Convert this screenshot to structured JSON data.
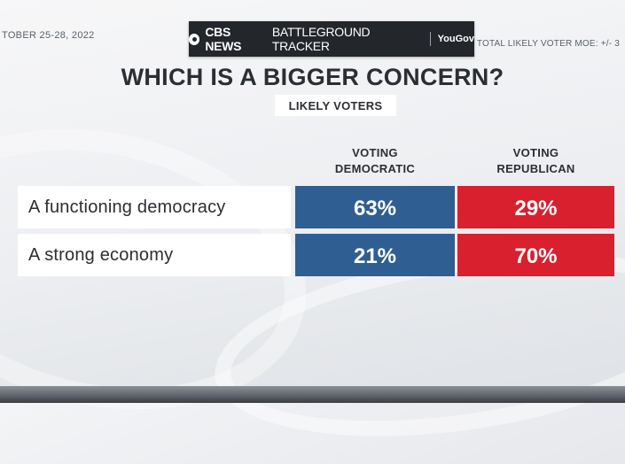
{
  "header": {
    "date": "TOBER 25-28, 2022",
    "brand_name": "CBS NEWS",
    "brand_tracker": "BATTLEGROUND TRACKER",
    "brand_partner": "YouGov",
    "moe": "TOTAL LIKELY VOTER MOE: +/- 3"
  },
  "colors": {
    "democratic": "#2f5f92",
    "republican": "#d8202e"
  },
  "chart_data": {
    "type": "table",
    "title": "WHICH IS A BIGGER CONCERN?",
    "subtitle": "LIKELY VOTERS",
    "columns": [
      {
        "lines": [
          "VOTING",
          "DEMOCRATIC"
        ]
      },
      {
        "lines": [
          "VOTING",
          "REPUBLICAN"
        ]
      }
    ],
    "rows": [
      {
        "label": "A functioning democracy",
        "values": [
          "63%",
          "29%"
        ]
      },
      {
        "label": "A strong economy",
        "values": [
          "21%",
          "70%"
        ]
      }
    ]
  }
}
